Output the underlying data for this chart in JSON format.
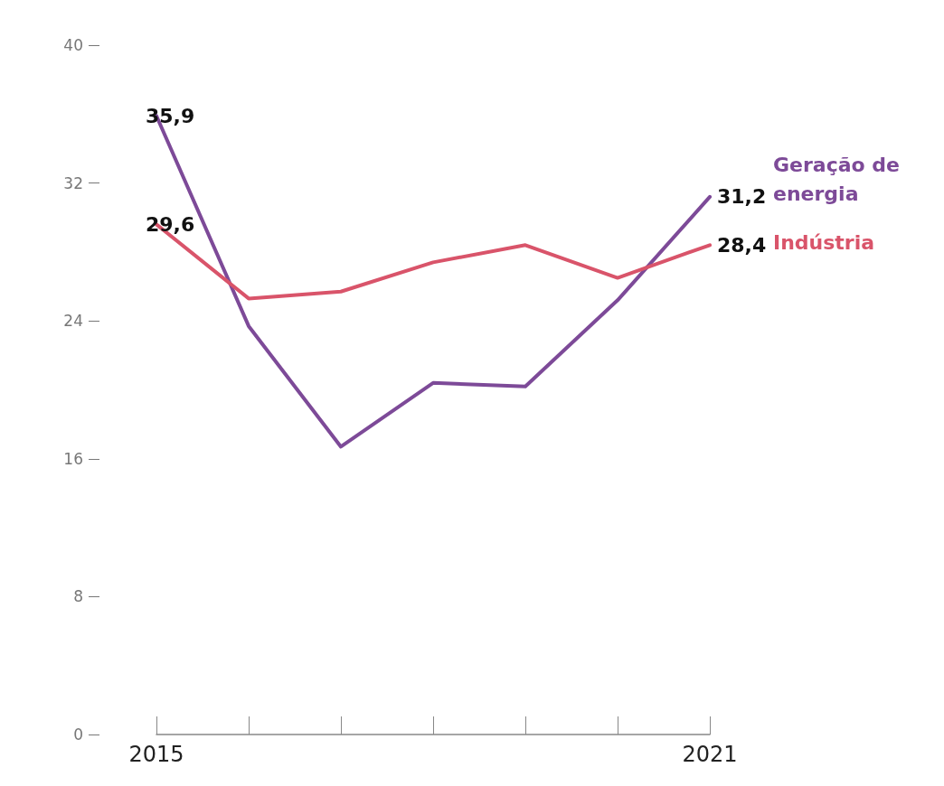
{
  "chart_data": {
    "type": "line",
    "categories": [
      "2015",
      null,
      null,
      null,
      null,
      null,
      "2021"
    ],
    "series": [
      {
        "name": "Geração de energia",
        "color": "#7d4a98",
        "values": [
          35.9,
          23.7,
          16.7,
          20.4,
          20.2,
          25.2,
          31.2
        ],
        "value_labels": [
          "35,9",
          null,
          null,
          null,
          null,
          null,
          "31,2"
        ]
      },
      {
        "name": "Indústria",
        "color": "#d9546a",
        "values": [
          29.6,
          25.3,
          25.7,
          27.4,
          28.4,
          26.5,
          28.4
        ],
        "value_labels": [
          "29,6",
          null,
          null,
          null,
          null,
          null,
          "28,4"
        ]
      }
    ],
    "ylim": [
      0,
      40
    ],
    "yticks": [
      0,
      8,
      16,
      24,
      32,
      40
    ],
    "grid": false,
    "legend": false,
    "marker": "none",
    "line_style": "solid"
  }
}
